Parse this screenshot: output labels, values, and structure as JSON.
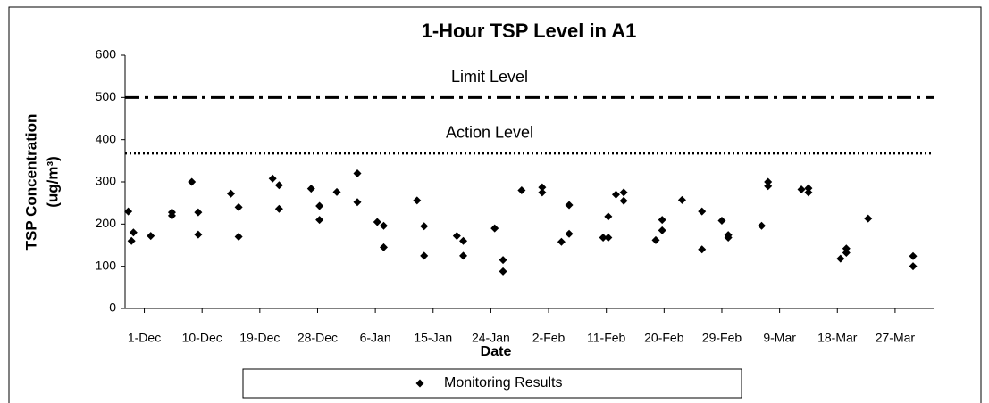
{
  "chart_data": {
    "type": "scatter",
    "title": "1-Hour TSP Level in A1",
    "x_label": "Date",
    "y_label": [
      "TSP Concentration",
      "(ug/m³)"
    ],
    "xlim": [
      -3,
      123
    ],
    "xticks": [
      {
        "value": 0,
        "label": "1-Dec"
      },
      {
        "value": 9,
        "label": "10-Dec"
      },
      {
        "value": 18,
        "label": "19-Dec"
      },
      {
        "value": 27,
        "label": "28-Dec"
      },
      {
        "value": 36,
        "label": "6-Jan"
      },
      {
        "value": 45,
        "label": "15-Jan"
      },
      {
        "value": 54,
        "label": "24-Jan"
      },
      {
        "value": 63,
        "label": "2-Feb"
      },
      {
        "value": 72,
        "label": "11-Feb"
      },
      {
        "value": 81,
        "label": "20-Feb"
      },
      {
        "value": 90,
        "label": "29-Feb"
      },
      {
        "value": 99,
        "label": "9-Mar"
      },
      {
        "value": 108,
        "label": "18-Mar"
      },
      {
        "value": 117,
        "label": "27-Mar"
      }
    ],
    "ylim": [
      0,
      600
    ],
    "yticks": [
      0,
      100,
      200,
      300,
      400,
      500,
      600
    ],
    "grid": false,
    "legend": "bottom",
    "reference_lines": [
      {
        "name": "Limit Level",
        "value": 500,
        "style": "dashdot",
        "color": "#000000"
      },
      {
        "name": "Action Level",
        "value": 368,
        "style": "dotted",
        "color": "#000000"
      }
    ],
    "series": [
      {
        "name": "Monitoring Results",
        "color": "#000000",
        "x": [
          -2.5,
          -2,
          -1.7,
          1,
          4.3,
          4.3,
          7.4,
          8.4,
          8.4,
          13.5,
          14.7,
          14.7,
          20,
          21,
          21,
          26,
          27.3,
          27.3,
          30,
          33.2,
          33.2,
          36.3,
          37.3,
          37.3,
          42.5,
          43.6,
          43.6,
          48.7,
          49.7,
          49.7,
          54.6,
          55.9,
          55.9,
          58.8,
          62,
          62,
          65,
          66.2,
          66.2,
          71.5,
          72.3,
          72.3,
          73.5,
          74.7,
          74.7,
          79.7,
          80.7,
          80.7,
          83.8,
          86.9,
          86.9,
          90,
          91,
          91,
          96.2,
          97.2,
          97.2,
          102.4,
          103.5,
          103.5,
          108.5,
          109.4,
          109.4,
          112.8,
          119.8,
          119.8
        ],
        "values": [
          230,
          160,
          180,
          172,
          228,
          220,
          300,
          228,
          175,
          272,
          240,
          170,
          308,
          292,
          236,
          284,
          243,
          210,
          276,
          320,
          252,
          205,
          196,
          145,
          256,
          195,
          125,
          172,
          160,
          125,
          190,
          115,
          88,
          280,
          287,
          275,
          158,
          245,
          177,
          168,
          168,
          218,
          270,
          275,
          255,
          162,
          210,
          185,
          257,
          230,
          140,
          208,
          174,
          168,
          196,
          300,
          290,
          282,
          285,
          275,
          118,
          142,
          132,
          213,
          124,
          100
        ]
      }
    ]
  }
}
